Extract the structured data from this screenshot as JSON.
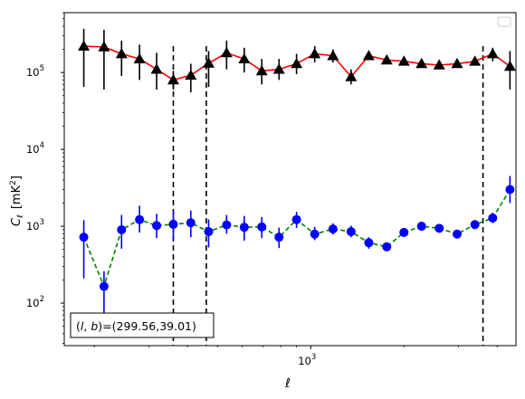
{
  "chart_data": {
    "type": "scatter",
    "xlabel": "ℓ",
    "ylabel_main": "C",
    "ylabel_sub": "ℓ",
    "ylabel_unit_prefix": "[mK",
    "ylabel_unit_sup": "2",
    "ylabel_unit_suffix": "]",
    "xscale": "log",
    "yscale": "log",
    "xlim": [
      160,
      4600
    ],
    "ylim": [
      28,
      600000
    ],
    "x_major_ticks": [
      {
        "value": 1000,
        "base": "10",
        "exp": "3"
      }
    ],
    "y_major_ticks": [
      {
        "value": 100,
        "base": "10",
        "exp": "2"
      },
      {
        "value": 1000,
        "base": "10",
        "exp": "3"
      },
      {
        "value": 10000,
        "base": "10",
        "exp": "4"
      },
      {
        "value": 100000,
        "base": "10",
        "exp": "5"
      }
    ],
    "x": [
      185,
      215,
      245,
      280,
      318,
      360,
      410,
      468,
      535,
      610,
      695,
      790,
      900,
      1030,
      1180,
      1350,
      1540,
      1760,
      2000,
      2280,
      2600,
      2970,
      3390,
      3870,
      4400
    ],
    "series": [
      {
        "color": "#ff0000",
        "line_style": "solid",
        "marker": "triangle",
        "marker_color": "#000000",
        "values": [
          220000,
          215000,
          175000,
          150000,
          110000,
          80000,
          92000,
          132000,
          180000,
          150000,
          105000,
          110000,
          130000,
          175000,
          165000,
          88000,
          165000,
          145000,
          140000,
          130000,
          125000,
          130000,
          140000,
          175000,
          120000
        ],
        "err_low": [
          65000,
          60000,
          90000,
          80000,
          60000,
          60000,
          55000,
          65000,
          110000,
          100000,
          70000,
          80000,
          95000,
          135000,
          135000,
          70000,
          145000,
          130000,
          125000,
          115000,
          110000,
          118000,
          125000,
          140000,
          60000
        ],
        "err_high": [
          370000,
          360000,
          260000,
          230000,
          180000,
          105000,
          130000,
          190000,
          260000,
          210000,
          150000,
          150000,
          175000,
          220000,
          200000,
          110000,
          190000,
          165000,
          160000,
          150000,
          145000,
          145000,
          160000,
          210000,
          190000
        ]
      },
      {
        "color": "#008000",
        "line_style": "dashed",
        "marker": "circle",
        "marker_color": "#0000ff",
        "values": [
          720,
          165,
          900,
          1220,
          1020,
          1060,
          1110,
          850,
          1040,
          970,
          980,
          720,
          1220,
          790,
          920,
          850,
          610,
          540,
          830,
          1000,
          940,
          790,
          1050,
          1280,
          3000
        ],
        "err_low": [
          210,
          70,
          510,
          830,
          700,
          650,
          720,
          530,
          800,
          650,
          700,
          520,
          950,
          660,
          780,
          720,
          510,
          480,
          770,
          930,
          860,
          730,
          950,
          1100,
          2000
        ],
        "err_high": [
          1200,
          260,
          1400,
          1850,
          1450,
          1570,
          1600,
          1230,
          1400,
          1360,
          1320,
          960,
          1540,
          980,
          1090,
          1020,
          720,
          610,
          910,
          1080,
          1030,
          860,
          1180,
          1500,
          4500
        ]
      }
    ],
    "vlines": [
      360,
      460,
      3600
    ],
    "legend_position": "upper right",
    "legend_entries": [],
    "annotation": "(l, b)=(299.56,39.01)",
    "annotation_var_l": "l",
    "annotation_var_b": "b",
    "annotation_values": "=(299.56,39.01)",
    "grid": false
  }
}
